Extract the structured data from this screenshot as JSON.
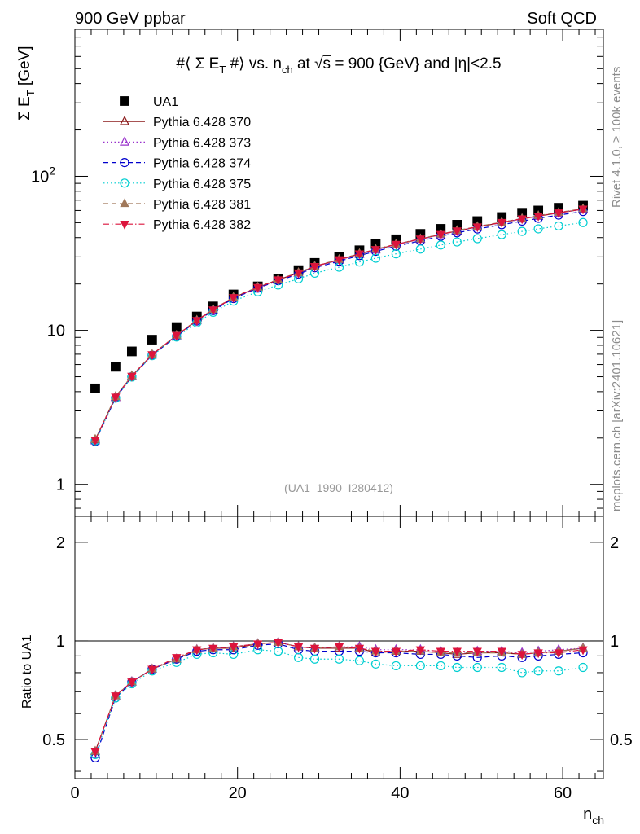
{
  "header": {
    "left": "900 GeV ppbar",
    "right": "Soft QCD"
  },
  "side_labels": {
    "rivet": "Rivet 4.1.0, ≥ 100k events",
    "mcplots": "mcplots.cern.ch [arXiv:2401.10621]"
  },
  "chart_data": [
    {
      "type": "scatter",
      "title": "#⟨ Σ E_T #⟩ vs. n_ch at √s = 900 {GeV} and |η|<2.5",
      "title_parts": {
        "a": "#⟨ Σ E",
        "a_sub": "T",
        "b": " #⟩ vs. n",
        "b_sub": "ch",
        "c": " at ",
        "sqrt": "√",
        "s": "s",
        "d": " = 900 {GeV} and |η|<2.5"
      },
      "ylabel": "Σ E_T [GeV]",
      "ylabel_parts": {
        "main": "Σ E",
        "sub": "T",
        "unit": " [GeV]"
      },
      "yscale": "log",
      "ylim": [
        0.62,
        900
      ],
      "xlim": [
        0,
        65
      ],
      "y_ticks": [
        {
          "value": 1,
          "label": "1"
        },
        {
          "value": 10,
          "label": "10"
        },
        {
          "value": 100,
          "label": "10",
          "sup": "2"
        }
      ],
      "watermark": "(UA1_1990_I280412)",
      "legend_position": "top-left",
      "x": [
        2.5,
        5,
        7,
        9.5,
        12.5,
        15,
        17,
        19.5,
        22.5,
        25,
        27.5,
        29.5,
        32.5,
        35,
        37,
        39.5,
        42.5,
        45,
        47,
        49.5,
        52.5,
        55,
        57,
        59.5,
        62.5
      ],
      "series": [
        {
          "name": "UA1",
          "marker": "square-filled",
          "color": "#000000",
          "line": "none",
          "values": [
            4.2,
            5.8,
            7.3,
            8.7,
            10.5,
            12.3,
            14.3,
            17.1,
            19.3,
            21.5,
            24.6,
            27.4,
            30.1,
            33.1,
            36.3,
            39.0,
            42.3,
            45.6,
            48.5,
            51.2,
            54.4,
            58.0,
            60.0,
            62.5,
            64.5
          ]
        },
        {
          "name": "Pythia 6.428 370",
          "marker": "triangle-up-open",
          "color": "#8b1a1a",
          "line": "solid",
          "values": [
            1.95,
            3.7,
            5.05,
            6.95,
            9.25,
            11.6,
            13.6,
            16.3,
            19.0,
            21.3,
            23.6,
            26.0,
            28.7,
            31.3,
            33.4,
            36.1,
            39.1,
            41.9,
            44.2,
            46.9,
            50.1,
            52.9,
            55.2,
            57.9,
            61.2
          ]
        },
        {
          "name": "Pythia 6.428 373",
          "marker": "triangle-up-open",
          "color": "#9932cc",
          "line": "dotted",
          "values": [
            1.92,
            3.66,
            5.02,
            6.92,
            9.2,
            11.55,
            13.55,
            16.25,
            18.9,
            21.2,
            23.5,
            25.9,
            28.6,
            31.2,
            33.3,
            36.0,
            39.0,
            41.8,
            44.1,
            46.8,
            50.0,
            52.8,
            55.1,
            57.8,
            60.9
          ]
        },
        {
          "name": "Pythia 6.428 374",
          "marker": "circle-open",
          "color": "#0000cd",
          "line": "dashed",
          "values": [
            1.9,
            3.64,
            5.0,
            6.9,
            9.15,
            11.5,
            13.45,
            16.1,
            18.8,
            21.0,
            23.2,
            25.5,
            28.1,
            30.6,
            32.6,
            35.2,
            38.1,
            40.8,
            43.0,
            45.5,
            48.5,
            51.2,
            53.4,
            56.0,
            59.1
          ]
        },
        {
          "name": "Pythia 6.428 375",
          "marker": "circle-open",
          "color": "#00ced1",
          "line": "dotted",
          "values": [
            1.92,
            3.63,
            4.98,
            6.85,
            9.05,
            11.2,
            13.1,
            15.5,
            17.8,
            19.7,
            21.6,
            23.5,
            25.7,
            27.8,
            29.4,
            31.4,
            33.7,
            35.8,
            37.5,
            39.4,
            41.8,
            43.9,
            45.6,
            47.6,
            50.1
          ]
        },
        {
          "name": "Pythia 6.428 381",
          "marker": "triangle-up-filled",
          "color": "#a0785a",
          "line": "dashed",
          "values": [
            1.96,
            3.72,
            5.07,
            6.98,
            9.3,
            11.65,
            13.7,
            16.4,
            19.1,
            21.4,
            23.7,
            26.1,
            28.9,
            31.5,
            33.6,
            36.3,
            39.3,
            42.1,
            44.5,
            47.2,
            50.4,
            53.2,
            55.6,
            58.3,
            61.6
          ]
        },
        {
          "name": "Pythia 6.428 382",
          "marker": "triangle-down-filled",
          "color": "#dc143c",
          "line": "dashdot",
          "values": [
            1.94,
            3.69,
            5.04,
            6.96,
            9.27,
            11.6,
            13.6,
            16.35,
            19.0,
            21.3,
            23.6,
            26.0,
            28.8,
            31.4,
            33.5,
            36.2,
            39.2,
            42.0,
            44.3,
            47.0,
            50.2,
            53.0,
            55.3,
            58.0,
            61.3
          ]
        }
      ]
    },
    {
      "type": "scatter",
      "ylabel": "Ratio to UA1",
      "xlabel": "n_ch",
      "xlabel_parts": {
        "main": "n",
        "sub": "ch"
      },
      "xlim": [
        0,
        65
      ],
      "ylim": [
        0.38,
        2.4
      ],
      "yscale": "log",
      "reference_line": 1,
      "x_ticks": [
        0,
        20,
        40,
        60
      ],
      "y_ticks": [
        {
          "value": 0.5,
          "label": "0.5"
        },
        {
          "value": 1,
          "label": "1"
        },
        {
          "value": 2,
          "label": "2"
        }
      ],
      "x": [
        2.5,
        5,
        7,
        9.5,
        12.5,
        15,
        17,
        19.5,
        22.5,
        25,
        27.5,
        29.5,
        32.5,
        35,
        37,
        39.5,
        42.5,
        45,
        47,
        49.5,
        52.5,
        55,
        57,
        59.5,
        62.5
      ],
      "series": [
        {
          "name": "Pythia 6.428 370",
          "marker": "triangle-up-open",
          "color": "#8b1a1a",
          "line": "solid",
          "values": [
            0.46,
            0.68,
            0.75,
            0.82,
            0.88,
            0.94,
            0.95,
            0.95,
            0.98,
            0.99,
            0.96,
            0.95,
            0.95,
            0.95,
            0.92,
            0.93,
            0.93,
            0.92,
            0.91,
            0.92,
            0.92,
            0.91,
            0.92,
            0.93,
            0.95
          ]
        },
        {
          "name": "Pythia 6.428 373",
          "marker": "triangle-up-open",
          "color": "#9932cc",
          "line": "dotted",
          "values": [
            0.45,
            0.68,
            0.75,
            0.82,
            0.88,
            0.94,
            0.95,
            0.96,
            0.98,
            0.99,
            0.96,
            0.95,
            0.96,
            0.96,
            0.94,
            0.94,
            0.94,
            0.93,
            0.92,
            0.93,
            0.93,
            0.92,
            0.93,
            0.94,
            0.95
          ]
        },
        {
          "name": "Pythia 6.428 374",
          "marker": "circle-open",
          "color": "#0000cd",
          "line": "dashed",
          "values": [
            0.44,
            0.67,
            0.75,
            0.82,
            0.88,
            0.93,
            0.94,
            0.94,
            0.97,
            0.98,
            0.94,
            0.93,
            0.93,
            0.93,
            0.92,
            0.92,
            0.91,
            0.91,
            0.9,
            0.89,
            0.9,
            0.89,
            0.9,
            0.91,
            0.92
          ]
        },
        {
          "name": "Pythia 6.428 375",
          "marker": "circle-open",
          "color": "#00ced1",
          "line": "dotted",
          "values": [
            0.45,
            0.67,
            0.74,
            0.81,
            0.86,
            0.91,
            0.92,
            0.91,
            0.94,
            0.93,
            0.89,
            0.88,
            0.88,
            0.87,
            0.85,
            0.84,
            0.84,
            0.84,
            0.83,
            0.83,
            0.83,
            0.8,
            0.81,
            0.81,
            0.83
          ]
        },
        {
          "name": "Pythia 6.428 381",
          "marker": "triangle-up-filled",
          "color": "#a0785a",
          "line": "dashed",
          "values": [
            0.46,
            0.68,
            0.75,
            0.82,
            0.88,
            0.94,
            0.95,
            0.96,
            0.98,
            0.99,
            0.96,
            0.95,
            0.96,
            0.95,
            0.93,
            0.93,
            0.93,
            0.92,
            0.92,
            0.92,
            0.92,
            0.91,
            0.92,
            0.93,
            0.95
          ]
        },
        {
          "name": "Pythia 6.428 382",
          "marker": "triangle-down-filled",
          "color": "#dc143c",
          "line": "dashdot",
          "values": [
            0.46,
            0.68,
            0.75,
            0.82,
            0.89,
            0.94,
            0.95,
            0.96,
            0.98,
            0.99,
            0.96,
            0.95,
            0.96,
            0.95,
            0.93,
            0.93,
            0.94,
            0.93,
            0.93,
            0.93,
            0.93,
            0.91,
            0.92,
            0.92,
            0.94
          ]
        }
      ]
    }
  ]
}
